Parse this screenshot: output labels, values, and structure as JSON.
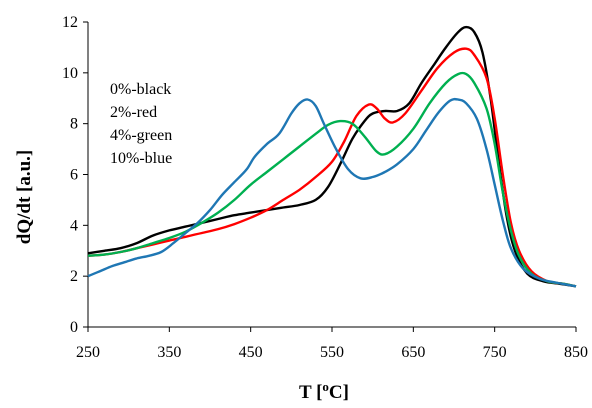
{
  "chart_data": {
    "type": "line",
    "xlabel": "T [",
    "xlabel_sup": "o",
    "xlabel_tail": "C]",
    "ylabel": "dQ/dt [a.u.]",
    "xlim": [
      250,
      850
    ],
    "ylim": [
      0,
      12
    ],
    "x_ticks": [
      250,
      350,
      450,
      550,
      650,
      750,
      850
    ],
    "y_ticks": [
      0,
      2,
      4,
      6,
      8,
      10,
      12
    ],
    "grid": false,
    "annotation_lines": [
      "0%-black",
      "2%-red",
      "4%-green",
      "10%-blue"
    ],
    "series": [
      {
        "color": "#000000",
        "points": [
          [
            250,
            2.9
          ],
          [
            270,
            3.0
          ],
          [
            290,
            3.1
          ],
          [
            310,
            3.3
          ],
          [
            330,
            3.6
          ],
          [
            350,
            3.8
          ],
          [
            370,
            3.95
          ],
          [
            390,
            4.1
          ],
          [
            410,
            4.25
          ],
          [
            430,
            4.4
          ],
          [
            450,
            4.5
          ],
          [
            470,
            4.6
          ],
          [
            490,
            4.7
          ],
          [
            510,
            4.8
          ],
          [
            530,
            5.0
          ],
          [
            545,
            5.5
          ],
          [
            560,
            6.4
          ],
          [
            575,
            7.4
          ],
          [
            590,
            8.1
          ],
          [
            600,
            8.4
          ],
          [
            615,
            8.5
          ],
          [
            630,
            8.5
          ],
          [
            645,
            8.8
          ],
          [
            660,
            9.6
          ],
          [
            675,
            10.3
          ],
          [
            690,
            11.0
          ],
          [
            705,
            11.6
          ],
          [
            715,
            11.8
          ],
          [
            725,
            11.6
          ],
          [
            735,
            10.8
          ],
          [
            745,
            9.0
          ],
          [
            755,
            6.5
          ],
          [
            765,
            4.3
          ],
          [
            775,
            3.0
          ],
          [
            790,
            2.1
          ],
          [
            810,
            1.8
          ],
          [
            830,
            1.7
          ],
          [
            850,
            1.6
          ]
        ]
      },
      {
        "color": "#ff0000",
        "points": [
          [
            250,
            2.8
          ],
          [
            270,
            2.85
          ],
          [
            290,
            2.95
          ],
          [
            310,
            3.1
          ],
          [
            330,
            3.25
          ],
          [
            350,
            3.4
          ],
          [
            370,
            3.55
          ],
          [
            390,
            3.7
          ],
          [
            410,
            3.85
          ],
          [
            430,
            4.05
          ],
          [
            450,
            4.3
          ],
          [
            470,
            4.6
          ],
          [
            490,
            5.0
          ],
          [
            510,
            5.4
          ],
          [
            530,
            5.9
          ],
          [
            550,
            6.5
          ],
          [
            565,
            7.3
          ],
          [
            580,
            8.3
          ],
          [
            595,
            8.75
          ],
          [
            605,
            8.6
          ],
          [
            615,
            8.2
          ],
          [
            625,
            8.05
          ],
          [
            640,
            8.4
          ],
          [
            660,
            9.3
          ],
          [
            680,
            10.2
          ],
          [
            700,
            10.8
          ],
          [
            715,
            10.95
          ],
          [
            725,
            10.7
          ],
          [
            740,
            9.8
          ],
          [
            750,
            8.2
          ],
          [
            760,
            6.0
          ],
          [
            770,
            4.1
          ],
          [
            780,
            3.0
          ],
          [
            795,
            2.2
          ],
          [
            815,
            1.8
          ],
          [
            835,
            1.7
          ],
          [
            850,
            1.6
          ]
        ]
      },
      {
        "color": "#00b050",
        "points": [
          [
            250,
            2.8
          ],
          [
            270,
            2.85
          ],
          [
            290,
            2.95
          ],
          [
            310,
            3.1
          ],
          [
            330,
            3.3
          ],
          [
            350,
            3.5
          ],
          [
            370,
            3.75
          ],
          [
            390,
            4.1
          ],
          [
            410,
            4.5
          ],
          [
            430,
            5.0
          ],
          [
            450,
            5.6
          ],
          [
            470,
            6.1
          ],
          [
            490,
            6.6
          ],
          [
            510,
            7.1
          ],
          [
            530,
            7.6
          ],
          [
            545,
            7.95
          ],
          [
            560,
            8.1
          ],
          [
            575,
            8.0
          ],
          [
            590,
            7.5
          ],
          [
            605,
            6.9
          ],
          [
            615,
            6.8
          ],
          [
            630,
            7.1
          ],
          [
            650,
            7.8
          ],
          [
            670,
            8.8
          ],
          [
            690,
            9.6
          ],
          [
            705,
            9.95
          ],
          [
            715,
            9.95
          ],
          [
            725,
            9.6
          ],
          [
            740,
            8.6
          ],
          [
            750,
            7.2
          ],
          [
            760,
            5.3
          ],
          [
            770,
            3.8
          ],
          [
            780,
            2.8
          ],
          [
            795,
            2.1
          ],
          [
            815,
            1.8
          ],
          [
            835,
            1.7
          ],
          [
            850,
            1.6
          ]
        ]
      },
      {
        "color": "#1f77b4",
        "points": [
          [
            250,
            2.0
          ],
          [
            265,
            2.2
          ],
          [
            280,
            2.4
          ],
          [
            295,
            2.55
          ],
          [
            310,
            2.7
          ],
          [
            325,
            2.8
          ],
          [
            340,
            2.95
          ],
          [
            355,
            3.3
          ],
          [
            370,
            3.7
          ],
          [
            385,
            4.1
          ],
          [
            400,
            4.6
          ],
          [
            415,
            5.2
          ],
          [
            430,
            5.7
          ],
          [
            445,
            6.2
          ],
          [
            455,
            6.7
          ],
          [
            470,
            7.2
          ],
          [
            485,
            7.6
          ],
          [
            500,
            8.4
          ],
          [
            510,
            8.8
          ],
          [
            520,
            8.95
          ],
          [
            530,
            8.7
          ],
          [
            540,
            8.0
          ],
          [
            555,
            7.0
          ],
          [
            570,
            6.2
          ],
          [
            585,
            5.85
          ],
          [
            600,
            5.9
          ],
          [
            615,
            6.1
          ],
          [
            630,
            6.4
          ],
          [
            650,
            7.0
          ],
          [
            665,
            7.7
          ],
          [
            680,
            8.4
          ],
          [
            695,
            8.9
          ],
          [
            705,
            8.95
          ],
          [
            715,
            8.8
          ],
          [
            728,
            8.2
          ],
          [
            740,
            7.0
          ],
          [
            750,
            5.6
          ],
          [
            760,
            4.2
          ],
          [
            770,
            3.1
          ],
          [
            785,
            2.3
          ],
          [
            805,
            1.9
          ],
          [
            825,
            1.75
          ],
          [
            850,
            1.6
          ]
        ]
      }
    ]
  }
}
